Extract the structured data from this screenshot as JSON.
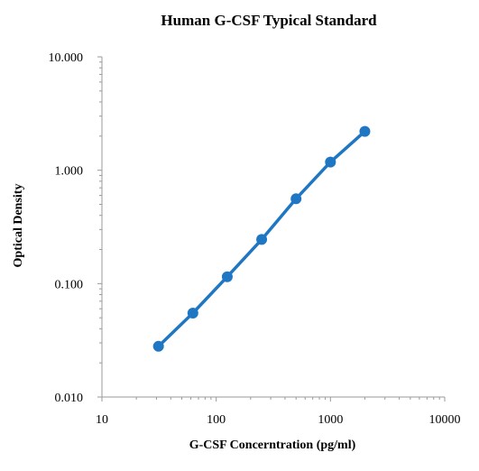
{
  "chart_data": {
    "type": "scatter",
    "title": "Human G-CSF Typical Standard",
    "xlabel": "G-CSF Concerntration (pg/ml)",
    "ylabel": "Optical Density",
    "x_scale": "log",
    "y_scale": "log",
    "xlim": [
      10,
      10000
    ],
    "ylim": [
      0.01,
      10
    ],
    "x_ticks": [
      10,
      100,
      1000,
      10000
    ],
    "x_tick_labels": [
      "10",
      "100",
      "1000",
      "10000"
    ],
    "y_ticks": [
      0.01,
      0.1,
      1,
      10
    ],
    "y_tick_labels": [
      "0.010",
      "0.100",
      "1.000",
      "10.000"
    ],
    "grid": false,
    "series": [
      {
        "x": [
          31.25,
          62.5,
          125,
          250,
          500,
          1000,
          2000
        ],
        "y": [
          0.028,
          0.055,
          0.115,
          0.245,
          0.56,
          1.18,
          2.2
        ],
        "markers": true,
        "line": true
      }
    ],
    "colors": {
      "series": "#1F77C4",
      "axis": "#9A9A9A",
      "text": "#000000"
    }
  }
}
